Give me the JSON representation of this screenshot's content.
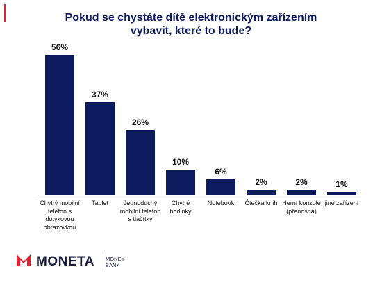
{
  "chart_data": {
    "type": "bar",
    "title": "Pokud se chystáte dítě elektronickým zařízením vybavit, které to bude?",
    "categories": [
      "Chytrý mobilní telefon s dotykovou obrazovkou",
      "Tablet",
      "Jednoduchý mobilní telefon s tlačítky",
      "Chytré hodinky",
      "Notebook",
      "Čtečka knih",
      "Herní konzole (přenosná)",
      "jiné zařízení"
    ],
    "values": [
      56,
      37,
      26,
      10,
      6,
      2,
      2,
      1
    ],
    "value_labels": [
      "56%",
      "37%",
      "26%",
      "10%",
      "6%",
      "2%",
      "2%",
      "1%"
    ],
    "color": "#0e1a5e"
  },
  "logo": {
    "name": "MONETA",
    "sub": "MONEY BANK"
  }
}
